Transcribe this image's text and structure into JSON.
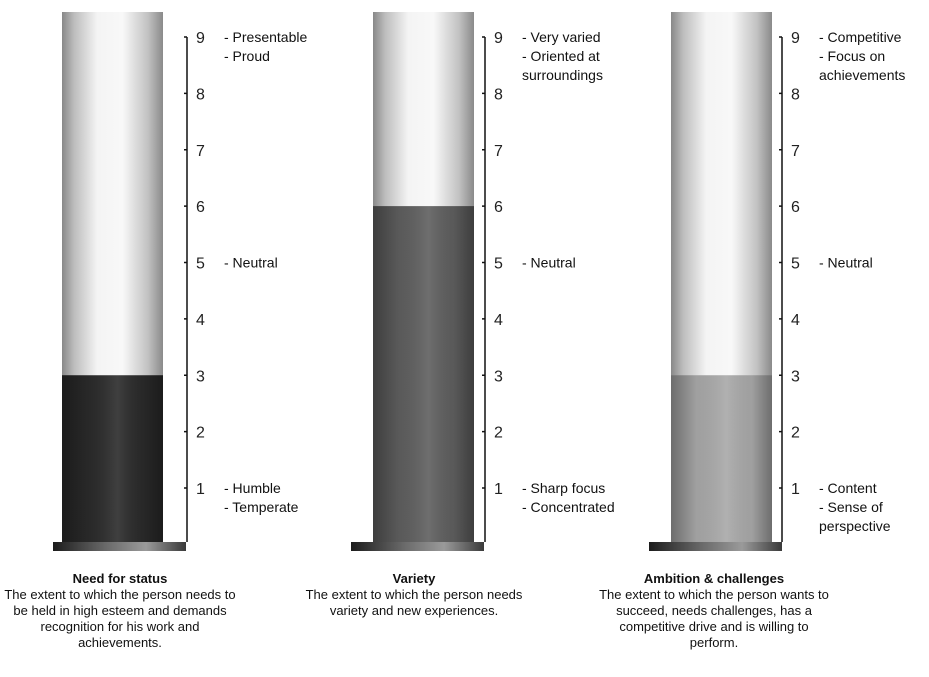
{
  "chart_data": [
    {
      "type": "bar",
      "title": "Need for status",
      "description": "The extent to which the person needs to be held in high esteem and demands recognition for his work and achievements.",
      "value": 3,
      "ylim": [
        0,
        9.5
      ],
      "ticks": [
        "1",
        "2",
        "3",
        "4",
        "5",
        "6",
        "7",
        "8",
        "9"
      ],
      "fill_color": "#2a2a2a",
      "annotations": [
        {
          "y": 9,
          "lines": [
            "- Presentable",
            "- Proud"
          ]
        },
        {
          "y": 5,
          "lines": [
            "- Neutral"
          ]
        },
        {
          "y": 1,
          "lines": [
            "- Humble",
            "- Temperate"
          ]
        }
      ]
    },
    {
      "type": "bar",
      "title": "Variety",
      "description": "The extent to which the person needs variety and new experiences.",
      "value": 6,
      "ylim": [
        0,
        9.5
      ],
      "ticks": [
        "1",
        "2",
        "3",
        "4",
        "5",
        "6",
        "7",
        "8",
        "9"
      ],
      "fill_color": "#5e5e5e",
      "annotations": [
        {
          "y": 9,
          "lines": [
            "- Very varied",
            "- Oriented at",
            "surroundings"
          ]
        },
        {
          "y": 5,
          "lines": [
            "- Neutral"
          ]
        },
        {
          "y": 1,
          "lines": [
            "- Sharp focus",
            "- Concentrated"
          ]
        }
      ]
    },
    {
      "type": "bar",
      "title": "Ambition & challenges",
      "description": "The extent to which the person wants to succeed, needs challenges, has a competitive drive and is willing to perform.",
      "value": 3,
      "ylim": [
        0,
        9.5
      ],
      "ticks": [
        "1",
        "2",
        "3",
        "4",
        "5",
        "6",
        "7",
        "8",
        "9"
      ],
      "fill_color": "#a8a8a8",
      "annotations": [
        {
          "y": 9,
          "lines": [
            "- Competitive",
            "- Focus on",
            "achievements"
          ]
        },
        {
          "y": 5,
          "lines": [
            "- Neutral"
          ]
        },
        {
          "y": 1,
          "lines": [
            "- Content",
            "- Sense of",
            "perspective"
          ]
        }
      ]
    }
  ]
}
